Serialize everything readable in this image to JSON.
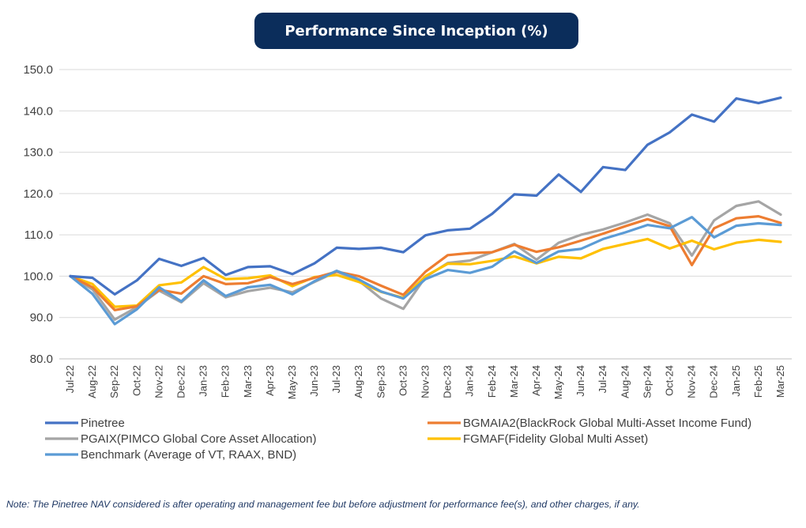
{
  "chart_data": {
    "type": "line",
    "title": "Performance Since Inception (%)",
    "xlabel": "",
    "ylabel": "",
    "ylim": [
      80,
      150
    ],
    "yticks": [
      80,
      90,
      100,
      110,
      120,
      130,
      140,
      150
    ],
    "ytick_labels": [
      "80.0",
      "90.0",
      "100.0",
      "110.0",
      "120.0",
      "130.0",
      "140.0",
      "150.0"
    ],
    "grid": "horizontal",
    "legend": "bottom",
    "categories": [
      "Jul-22",
      "Aug-22",
      "Sep-22",
      "Oct-22",
      "Nov-22",
      "Dec-22",
      "Jan-23",
      "Feb-23",
      "Mar-23",
      "Apr-23",
      "May-23",
      "Jun-23",
      "Jul-23",
      "Aug-23",
      "Sep-23",
      "Oct-23",
      "Nov-23",
      "Dec-23",
      "Jan-24",
      "Feb-24",
      "Mar-24",
      "Apr-24",
      "May-24",
      "Jun-24",
      "Jul-24",
      "Aug-24",
      "Sep-24",
      "Oct-24",
      "Nov-24",
      "Dec-24",
      "Jan-25",
      "Feb-25",
      "Mar-25"
    ],
    "series": [
      {
        "name": "Pinetree",
        "color": "#4472c4",
        "values": [
          100,
          99.6,
          95.6,
          99.0,
          104.2,
          102.5,
          104.4,
          100.3,
          102.2,
          102.4,
          100.5,
          103.1,
          106.9,
          106.6,
          106.9,
          105.8,
          109.9,
          111.1,
          111.5,
          115.1,
          119.8,
          119.5,
          124.6,
          120.4,
          126.4,
          125.7,
          131.8,
          134.8,
          139.1,
          137.4,
          143.0,
          141.9,
          143.2
        ]
      },
      {
        "name": "BGMAIA2(BlackRock Global Multi-Asset Income Fund)",
        "color": "#ed7d31",
        "values": [
          100,
          97.3,
          91.8,
          92.7,
          96.7,
          95.8,
          100.0,
          98.1,
          98.3,
          99.8,
          98.1,
          99.6,
          101.1,
          100.0,
          97.7,
          95.5,
          101.1,
          105.1,
          105.6,
          105.8,
          107.6,
          105.9,
          107.0,
          108.6,
          110.3,
          112.1,
          113.8,
          112.1,
          102.7,
          111.6,
          114.0,
          114.5,
          112.9
        ]
      },
      {
        "name": "PGAIX(PIMCO Global Core Asset Allocation)",
        "color": "#a5a5a5",
        "values": [
          100,
          96.8,
          89.5,
          92.5,
          96.5,
          93.7,
          98.3,
          94.9,
          96.4,
          97.2,
          96.1,
          98.6,
          101.1,
          98.9,
          94.6,
          92.1,
          99.8,
          103.2,
          103.8,
          105.8,
          107.8,
          104.0,
          108.1,
          110.0,
          111.3,
          113.0,
          114.9,
          112.8,
          105.0,
          113.5,
          117.0,
          118.1,
          114.9
        ]
      },
      {
        "name": "FGMAF(Fidelity Global Multi Asset)",
        "color": "#ffc000",
        "values": [
          100,
          98.1,
          92.6,
          92.9,
          97.8,
          98.5,
          102.2,
          99.3,
          99.5,
          100.2,
          97.6,
          99.8,
          100.3,
          98.6,
          96.2,
          94.8,
          100.0,
          103.0,
          102.9,
          103.7,
          104.8,
          103.1,
          104.7,
          104.3,
          106.6,
          107.8,
          109.0,
          106.7,
          108.6,
          106.5,
          108.1,
          108.8,
          108.3
        ]
      },
      {
        "name": "Benchmark (Average of VT, RAAX, BND)",
        "color": "#5b9bd5",
        "values": [
          100,
          95.7,
          88.4,
          92.0,
          97.3,
          93.9,
          99.0,
          95.2,
          97.3,
          97.9,
          95.6,
          98.8,
          101.3,
          99.2,
          96.3,
          94.6,
          99.3,
          101.5,
          100.8,
          102.3,
          106.0,
          103.2,
          106.0,
          106.6,
          109.0,
          110.6,
          112.4,
          111.6,
          114.3,
          109.4,
          112.2,
          112.8,
          112.4
        ]
      }
    ]
  },
  "note": "Note: The Pinetree NAV considered is after operating and management fee but before adjustment for performance fee(s), and other charges, if any."
}
